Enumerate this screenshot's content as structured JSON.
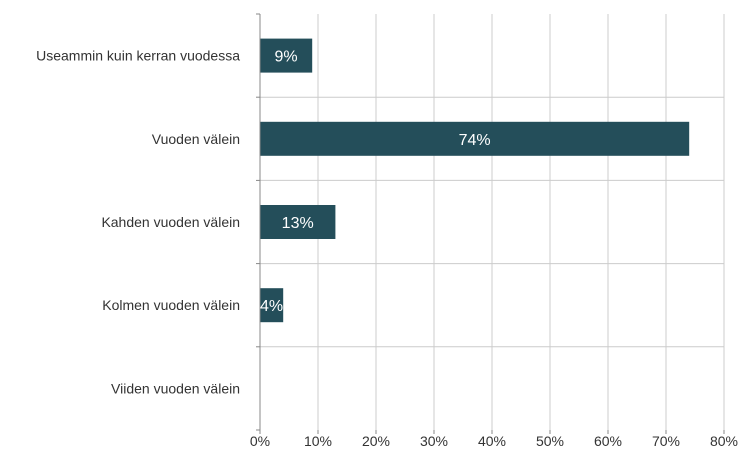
{
  "chart_data": {
    "type": "bar",
    "orientation": "horizontal",
    "categories": [
      "Useammin kuin kerran vuodessa",
      "Vuoden välein",
      "Kahden vuoden välein",
      "Kolmen vuoden välein",
      "Viiden vuoden välein"
    ],
    "values": [
      9,
      74,
      13,
      4,
      0
    ],
    "data_labels": [
      "9%",
      "74%",
      "13%",
      "4%",
      ""
    ],
    "title": "",
    "xlabel": "",
    "ylabel": "",
    "xlim": [
      0,
      80
    ],
    "x_ticks": [
      "0%",
      "10%",
      "20%",
      "30%",
      "40%",
      "50%",
      "60%",
      "70%",
      "80%"
    ],
    "grid": true,
    "legend": "none",
    "colors": {
      "bar": "#244e5a",
      "grid": "#cccccc",
      "axis": "#888888",
      "text": "#333333",
      "data_label": "#ffffff"
    }
  }
}
